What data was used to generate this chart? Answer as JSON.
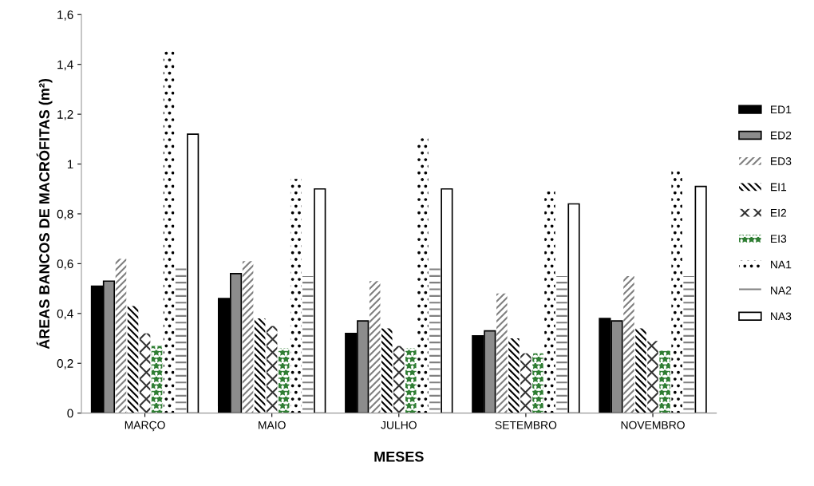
{
  "chart_data": {
    "type": "bar",
    "xlabel": "MESES",
    "ylabel": "ÁREAS BANCOS DE MACRÓFITAS (m²)",
    "categories": [
      "MARÇO",
      "MAIO",
      "JULHO",
      "SETEMBRO",
      "NOVEMBRO"
    ],
    "series": [
      {
        "name": "ED1",
        "color": "#000000",
        "values": [
          0.51,
          0.46,
          0.32,
          0.31,
          0.38
        ]
      },
      {
        "name": "ED2",
        "color": "#8c8c8c",
        "values": [
          0.53,
          0.56,
          0.37,
          0.33,
          0.37
        ]
      },
      {
        "name": "ED3",
        "color": "#7f7f7f",
        "values": [
          0.62,
          0.61,
          0.53,
          0.48,
          0.55
        ]
      },
      {
        "name": "EI1",
        "color": "#000000",
        "values": [
          0.43,
          0.38,
          0.34,
          0.3,
          0.34
        ]
      },
      {
        "name": "EI2",
        "color": "#333333",
        "values": [
          0.32,
          0.35,
          0.27,
          0.24,
          0.29
        ]
      },
      {
        "name": "EI3",
        "color": "#2e7d32",
        "values": [
          0.27,
          0.26,
          0.26,
          0.24,
          0.25
        ]
      },
      {
        "name": "NA1",
        "color": "#000000",
        "values": [
          1.46,
          0.94,
          1.11,
          0.89,
          0.98
        ]
      },
      {
        "name": "NA2",
        "color": "#808080",
        "values": [
          0.59,
          0.55,
          0.59,
          0.55,
          0.55
        ]
      },
      {
        "name": "NA3",
        "color": "#ffffff",
        "values": [
          1.12,
          0.9,
          0.9,
          0.84,
          0.91
        ]
      }
    ],
    "ylim": [
      0,
      1.6
    ],
    "yticks": [
      0,
      {
        "value": 0.2,
        "label": "0,2"
      },
      {
        "value": 0.4,
        "label": "0,4"
      },
      {
        "value": 0.6,
        "label": "0,6"
      },
      {
        "value": 0.8,
        "label": "0,8"
      },
      1,
      {
        "value": 1.2,
        "label": "1,2"
      },
      {
        "value": 1.4,
        "label": "1,4"
      },
      {
        "value": 1.6,
        "label": "1,6"
      }
    ],
    "grid": false,
    "legend": "right"
  }
}
